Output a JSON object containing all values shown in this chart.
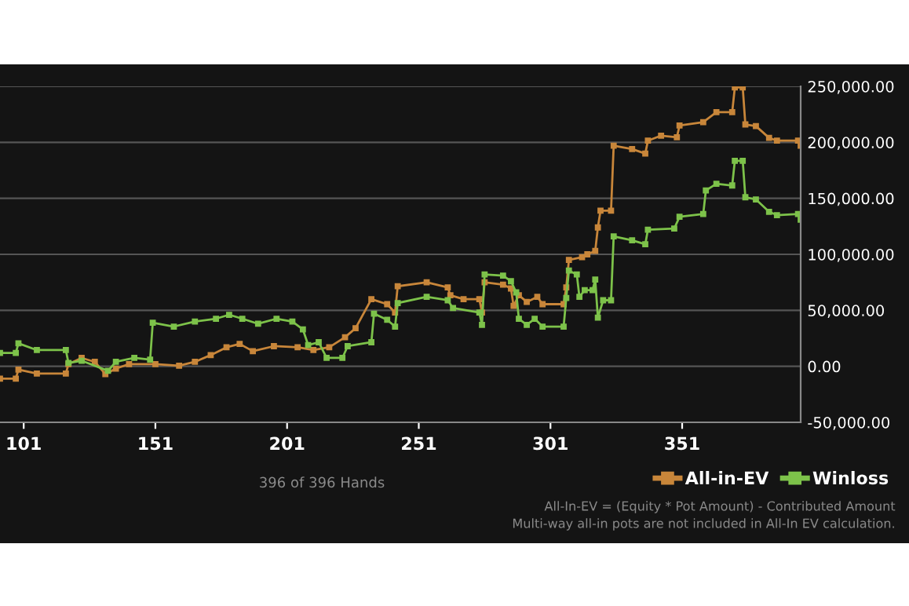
{
  "chart_data": {
    "type": "line",
    "xlim": [
      92,
      396
    ],
    "xticks": [
      101,
      151,
      201,
      251,
      301,
      351
    ],
    "ylim": [
      -50000,
      250000
    ],
    "yticks": [
      {
        "value": -50000,
        "label": "-50,000.00"
      },
      {
        "value": 0,
        "label": "0.00"
      },
      {
        "value": 50000,
        "label": "50,000.00"
      },
      {
        "value": 100000,
        "label": "100,000.00"
      },
      {
        "value": 150000,
        "label": "150,000.00"
      },
      {
        "value": 200000,
        "label": "200,000.00"
      },
      {
        "value": 250000,
        "label": "250,000.00"
      }
    ],
    "grid": "y",
    "legend": "bottom right",
    "marker": "square",
    "line_style": "solid",
    "annotations": [
      "396 of 396 Hands",
      "All-In-EV = (Equity * Pot Amount) - Contributed Amount",
      "Multi-way all-in pots are not included in All-In EV calculation."
    ],
    "series": [
      {
        "name": "All-in-EV",
        "color": "#c8863a",
        "x": [
          92,
          98,
          99,
          106,
          117,
          118,
          123,
          128,
          132,
          136,
          141,
          151,
          160,
          166,
          172,
          178,
          183,
          188,
          196,
          205,
          211,
          217,
          223,
          227,
          233,
          239,
          242,
          243,
          254,
          262,
          263,
          268,
          274,
          275,
          276,
          283,
          286,
          287,
          289,
          292,
          296,
          298,
          306,
          307,
          308,
          313,
          315,
          318,
          319,
          320,
          324,
          325,
          332,
          337,
          338,
          343,
          349,
          350,
          359,
          364,
          370,
          371,
          374,
          375,
          379,
          384,
          387,
          395,
          396
        ],
        "values": [
          -11000,
          -11000,
          -3000,
          -6500,
          -6500,
          2000,
          7500,
          4000,
          -7000,
          -2000,
          2000,
          2000,
          500,
          4000,
          10000,
          17000,
          20000,
          13500,
          18000,
          17000,
          14500,
          17000,
          26000,
          34000,
          60000,
          55500,
          48000,
          71500,
          75000,
          70500,
          63500,
          60000,
          60000,
          48000,
          75000,
          73000,
          69500,
          54000,
          63500,
          57500,
          62000,
          55500,
          55500,
          70500,
          95000,
          97500,
          100000,
          103000,
          124000,
          139000,
          139000,
          197000,
          194000,
          190000,
          201500,
          206000,
          204500,
          215000,
          218000,
          227000,
          227000,
          249000,
          249000,
          216000,
          214500,
          204000,
          201500,
          201500,
          197000
        ]
      },
      {
        "name": "Winloss",
        "color": "#7dc24a",
        "x": [
          92,
          98,
          99,
          106,
          117,
          118,
          123,
          133,
          136,
          143,
          149,
          150,
          158,
          166,
          174,
          179,
          184,
          190,
          197,
          203,
          207,
          209,
          213,
          216,
          222,
          224,
          233,
          234,
          239,
          242,
          243,
          254,
          262,
          264,
          274,
          275,
          276,
          283,
          286,
          288,
          289,
          292,
          295,
          298,
          306,
          307,
          308,
          311,
          312,
          314,
          317,
          318,
          319,
          321,
          324,
          325,
          332,
          337,
          338,
          348,
          350,
          359,
          360,
          364,
          370,
          371,
          374,
          375,
          379,
          384,
          387,
          395,
          396
        ],
        "values": [
          12000,
          12000,
          20500,
          14500,
          14500,
          3000,
          5000,
          -4000,
          4000,
          7500,
          6000,
          39000,
          35500,
          40000,
          42500,
          46000,
          42500,
          38000,
          42500,
          40000,
          33000,
          19000,
          21500,
          7500,
          7500,
          18000,
          21500,
          47000,
          41500,
          35500,
          56500,
          62000,
          59000,
          52000,
          48000,
          37000,
          82000,
          81000,
          76000,
          66000,
          42500,
          37000,
          42500,
          35500,
          35500,
          61000,
          85500,
          82000,
          62000,
          68000,
          68000,
          77500,
          43500,
          59000,
          59000,
          116000,
          112500,
          109000,
          122000,
          123000,
          133500,
          136000,
          157000,
          163000,
          161500,
          183500,
          183500,
          151000,
          149000,
          138000,
          135000,
          136000,
          131000
        ]
      }
    ]
  }
}
